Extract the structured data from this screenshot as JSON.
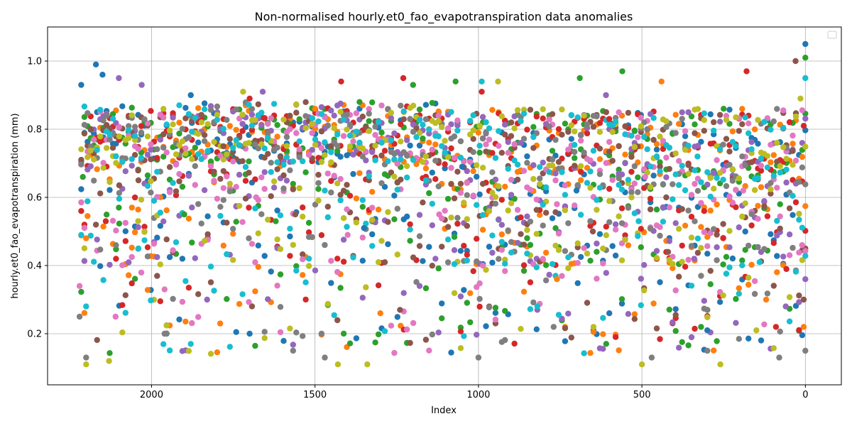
{
  "chart_data": {
    "type": "scatter",
    "title": "Non-normalised hourly.et0_fao_evapotranspiration data anomalies",
    "xlabel": "Index",
    "ylabel": "hourly.et0_fao_evapotranspiration (mm)",
    "x_inverted": true,
    "xlim": [
      2318,
      -110
    ],
    "ylim": [
      0.05,
      1.1
    ],
    "xticks": [
      2000,
      1500,
      1000,
      500,
      0
    ],
    "xtick_labels": [
      "2000",
      "1500",
      "1000",
      "500",
      "0"
    ],
    "yticks": [
      0.2,
      0.4,
      0.6,
      0.8,
      1.0
    ],
    "ytick_labels": [
      "0.2",
      "0.4",
      "0.6",
      "0.8",
      "1.0"
    ],
    "grid": true,
    "legend": {
      "placement": "top-right",
      "entries": []
    },
    "index_range": [
      0,
      2215
    ],
    "series_colors": [
      "#1f77b4",
      "#ff7f0e",
      "#2ca02c",
      "#d62728",
      "#9467bd",
      "#8c564b",
      "#e377c2",
      "#7f7f7f",
      "#bcbd22",
      "#17becf"
    ],
    "series": [
      {
        "values": [
          [
            2215,
            0.93
          ],
          [
            2170,
            0.99
          ],
          [
            2150,
            0.96
          ],
          [
            1880,
            0.9
          ],
          [
            1700,
            0.2
          ],
          [
            1350,
            0.51
          ],
          [
            1050,
            0.69
          ],
          [
            700,
            0.62
          ],
          [
            300,
            0.21
          ],
          [
            0,
            1.05
          ]
        ]
      },
      {
        "values": [
          [
            2200,
            0.48
          ],
          [
            2060,
            0.57
          ],
          [
            1790,
            0.23
          ],
          [
            1500,
            0.86
          ],
          [
            1300,
            0.26
          ],
          [
            1000,
            0.79
          ],
          [
            760,
            0.36
          ],
          [
            440,
            0.94
          ],
          [
            120,
            0.3
          ],
          [
            5,
            0.22
          ]
        ]
      },
      {
        "values": [
          [
            2210,
            0.66
          ],
          [
            2100,
            0.57
          ],
          [
            1900,
            0.55
          ],
          [
            1620,
            0.53
          ],
          [
            1200,
            0.93
          ],
          [
            1070,
            0.94
          ],
          [
            690,
            0.95
          ],
          [
            560,
            0.97
          ],
          [
            250,
            0.86
          ],
          [
            0,
            1.01
          ]
        ]
      },
      {
        "values": [
          [
            2215,
            0.56
          ],
          [
            2140,
            0.53
          ],
          [
            1700,
            0.89
          ],
          [
            1420,
            0.94
          ],
          [
            1230,
            0.95
          ],
          [
            990,
            0.91
          ],
          [
            600,
            0.83
          ],
          [
            180,
            0.97
          ],
          [
            90,
            0.22
          ],
          [
            5,
            0.81
          ]
        ]
      },
      {
        "values": [
          [
            2100,
            0.95
          ],
          [
            2030,
            0.93
          ],
          [
            1830,
            0.3
          ],
          [
            1660,
            0.91
          ],
          [
            1180,
            0.34
          ],
          [
            820,
            0.27
          ],
          [
            610,
            0.9
          ],
          [
            340,
            0.42
          ],
          [
            60,
            0.28
          ],
          [
            0,
            0.36
          ]
        ]
      },
      {
        "values": [
          [
            2170,
            0.52
          ],
          [
            2040,
            0.65
          ],
          [
            1780,
            0.75
          ],
          [
            1560,
            0.55
          ],
          [
            1240,
            0.27
          ],
          [
            900,
            0.78
          ],
          [
            650,
            0.5
          ],
          [
            420,
            0.44
          ],
          [
            30,
            1.0
          ],
          [
            5,
            0.3
          ]
        ]
      },
      {
        "values": [
          [
            2220,
            0.34
          ],
          [
            2110,
            0.25
          ],
          [
            1960,
            0.33
          ],
          [
            1680,
            0.6
          ],
          [
            1400,
            0.49
          ],
          [
            1120,
            0.55
          ],
          [
            760,
            0.58
          ],
          [
            490,
            0.66
          ],
          [
            190,
            0.62
          ],
          [
            10,
            0.46
          ]
        ]
      },
      {
        "values": [
          [
            2220,
            0.25
          ],
          [
            2200,
            0.13
          ],
          [
            1960,
            0.2
          ],
          [
            1470,
            0.13
          ],
          [
            1000,
            0.13
          ],
          [
            770,
            0.22
          ],
          [
            470,
            0.13
          ],
          [
            300,
            0.27
          ],
          [
            80,
            0.13
          ],
          [
            0,
            0.15
          ]
        ]
      },
      {
        "values": [
          [
            2200,
            0.11
          ],
          [
            2130,
            0.12
          ],
          [
            1720,
            0.91
          ],
          [
            1430,
            0.11
          ],
          [
            1340,
            0.11
          ],
          [
            940,
            0.94
          ],
          [
            500,
            0.11
          ],
          [
            260,
            0.11
          ],
          [
            150,
            0.21
          ],
          [
            15,
            0.89
          ]
        ]
      },
      {
        "values": [
          [
            2200,
            0.28
          ],
          [
            2040,
            0.45
          ],
          [
            1880,
            0.17
          ],
          [
            1470,
            0.62
          ],
          [
            990,
            0.94
          ],
          [
            820,
            0.28
          ],
          [
            510,
            0.53
          ],
          [
            330,
            0.72
          ],
          [
            140,
            0.41
          ],
          [
            0,
            0.95
          ]
        ]
      }
    ]
  }
}
